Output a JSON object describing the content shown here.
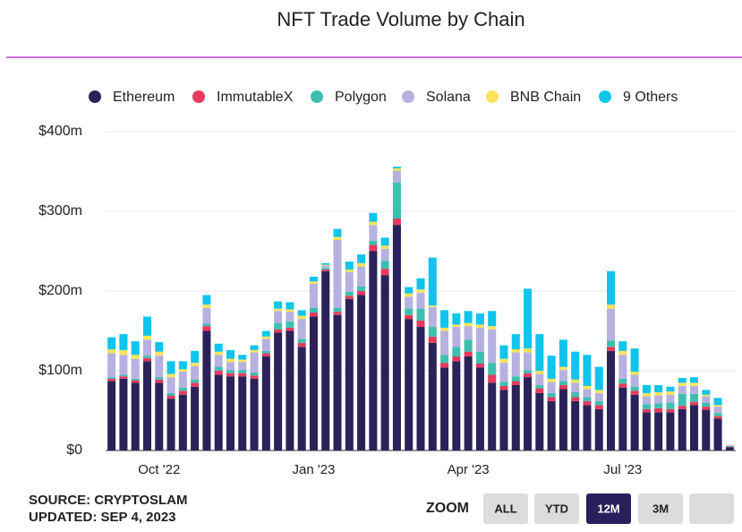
{
  "chart_data": {
    "type": "stacked_bar",
    "title": "NFT Trade Volume by Chain",
    "categories": [
      null,
      null,
      null,
      null,
      "Oct '22",
      null,
      null,
      null,
      null,
      null,
      null,
      null,
      null,
      null,
      null,
      null,
      null,
      "Jan '23",
      null,
      null,
      null,
      null,
      null,
      null,
      null,
      null,
      null,
      null,
      null,
      null,
      "Apr '23",
      null,
      null,
      null,
      null,
      null,
      null,
      null,
      null,
      null,
      null,
      null,
      null,
      "Jul '23",
      null,
      null,
      null,
      null,
      null,
      null,
      null,
      null,
      null
    ],
    "series": [
      {
        "name": "Ethereum",
        "color": "#2a2258",
        "values": [
          87,
          90,
          85,
          112,
          85,
          65,
          70,
          80,
          150,
          95,
          93,
          93,
          90,
          118,
          148,
          150,
          130,
          168,
          225,
          170,
          190,
          195,
          250,
          220,
          283,
          165,
          155,
          135,
          104,
          112,
          118,
          104,
          85,
          76,
          82,
          92,
          72,
          62,
          77,
          62,
          57,
          52,
          125,
          79,
          70,
          48,
          48,
          48,
          52,
          57,
          51,
          40,
          4
        ]
      },
      {
        "name": "ImmutableX",
        "color": "#e8395e",
        "values": [
          3,
          3,
          3,
          4,
          4,
          4,
          5,
          5,
          6,
          5,
          4,
          4,
          4,
          4,
          4,
          4,
          5,
          5,
          2,
          4,
          4,
          5,
          8,
          8,
          8,
          5,
          8,
          8,
          6,
          6,
          6,
          5,
          10,
          5,
          5,
          5,
          6,
          5,
          5,
          5,
          5,
          5,
          5,
          5,
          5,
          4,
          5,
          4,
          4,
          4,
          4,
          3,
          0.5
        ]
      },
      {
        "name": "Polygon",
        "color": "#3dbfb0",
        "values": [
          2,
          2,
          2,
          3,
          3,
          3,
          4,
          4,
          3,
          5,
          4,
          4,
          4,
          3,
          8,
          8,
          5,
          6,
          2,
          5,
          5,
          6,
          5,
          10,
          45,
          8,
          15,
          12,
          10,
          12,
          15,
          15,
          15,
          5,
          6,
          4,
          4,
          5,
          5,
          6,
          5,
          5,
          8,
          6,
          5,
          6,
          6,
          8,
          15,
          10,
          5,
          4,
          1
        ]
      },
      {
        "name": "Solana",
        "color": "#b6b1e0",
        "values": [
          30,
          25,
          25,
          20,
          27,
          20,
          20,
          17,
          20,
          15,
          10,
          10,
          25,
          15,
          15,
          12,
          25,
          30,
          3,
          85,
          25,
          25,
          20,
          15,
          15,
          15,
          20,
          25,
          30,
          25,
          17,
          30,
          42,
          24,
          30,
          22,
          14,
          14,
          14,
          12,
          10,
          10,
          40,
          30,
          15,
          10,
          10,
          10,
          10,
          10,
          8,
          8,
          1
        ]
      },
      {
        "name": "BNB Chain",
        "color": "#fce35a",
        "values": [
          5,
          6,
          5,
          5,
          5,
          4,
          3,
          4,
          4,
          4,
          4,
          3,
          3,
          3,
          3,
          3,
          4,
          3,
          1,
          4,
          3,
          4,
          4,
          4,
          3,
          4,
          4,
          2,
          4,
          3,
          4,
          4,
          4,
          5,
          4,
          5,
          4,
          4,
          4,
          4,
          4,
          4,
          5,
          5,
          4,
          4,
          4,
          4,
          4,
          4,
          2,
          2,
          0.5
        ]
      },
      {
        "name": "9 Others",
        "color": "#10c4ec",
        "values": [
          15,
          20,
          17,
          24,
          12,
          16,
          10,
          15,
          12,
          10,
          11,
          6,
          6,
          7,
          9,
          9,
          7,
          6,
          2,
          10,
          10,
          11,
          11,
          10,
          2,
          8,
          14,
          60,
          22,
          14,
          15,
          14,
          19,
          17,
          19,
          75,
          46,
          29,
          34,
          35,
          39,
          29,
          42,
          12,
          29,
          10,
          9,
          6,
          6,
          7,
          6,
          9,
          0
        ]
      }
    ],
    "ylim": [
      0,
      400
    ],
    "yticks": [
      {
        "value": 0,
        "label": "$0"
      },
      {
        "value": 100,
        "label": "$100m"
      },
      {
        "value": 200,
        "label": "$200m"
      },
      {
        "value": 300,
        "label": "$300m"
      },
      {
        "value": 400,
        "label": "$400m"
      }
    ],
    "grid": true,
    "legend": "top"
  },
  "footer": {
    "source": "SOURCE: CRYPTOSLAM",
    "updated": "UPDATED: SEP 4, 2023"
  },
  "zoom": {
    "label": "ZOOM",
    "buttons": [
      "ALL",
      "YTD",
      "12M",
      "3M",
      ""
    ],
    "active_index": 2
  }
}
